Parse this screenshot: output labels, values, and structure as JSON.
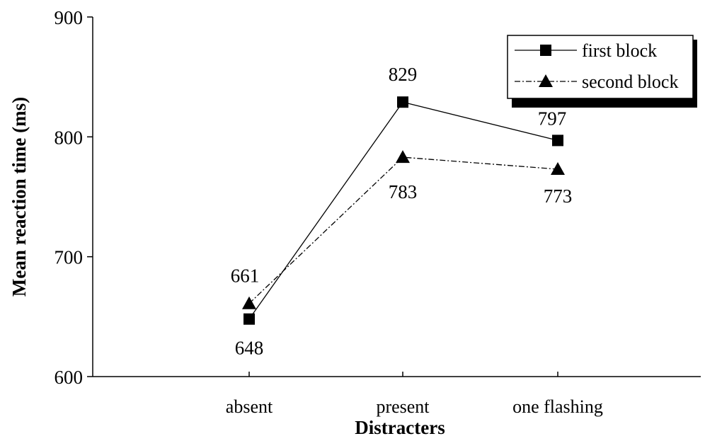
{
  "chart_data": {
    "type": "line",
    "title": "",
    "xlabel": "Distracters",
    "ylabel": "Mean reaction time (ms)",
    "categories": [
      "absent",
      "present",
      "one flashing"
    ],
    "ylim": [
      600,
      900
    ],
    "yticks": [
      "600",
      "700",
      "800",
      "900"
    ],
    "grid": false,
    "legend_position": "top-right",
    "series": [
      {
        "name": "first block",
        "values": [
          648,
          829,
          797
        ],
        "value_labels": [
          "648",
          "829",
          "797"
        ],
        "marker": "square",
        "line_style": "solid",
        "color": "#000000"
      },
      {
        "name": "second block",
        "values": [
          661,
          783,
          773
        ],
        "value_labels": [
          "661",
          "783",
          "773"
        ],
        "marker": "triangle",
        "line_style": "dash-dot",
        "color": "#000000"
      }
    ]
  }
}
